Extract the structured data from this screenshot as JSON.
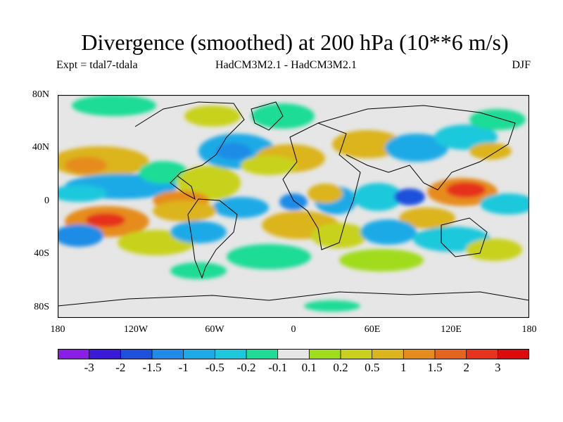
{
  "title": "Divergence (smoothed) at 200 hPa (10**6 m/s)",
  "experiment": "Expt = tdal7-tdala",
  "models": "HadCM3M2.1 - HadCM3M2.1",
  "season": "DJF",
  "lat_labels": [
    "80N",
    "40N",
    "0",
    "40S",
    "80S"
  ],
  "lon_labels": [
    "180",
    "120W",
    "60W",
    "0",
    "60E",
    "120E",
    "180"
  ],
  "colorbar": {
    "labels": [
      "-3",
      "-2",
      "-1.5",
      "-1",
      "-0.5",
      "-0.2",
      "-0.1",
      "0.1",
      "0.2",
      "0.5",
      "1",
      "1.5",
      "2",
      "3"
    ],
    "colors": [
      "#8a1ee6",
      "#3a1ad8",
      "#1e50dc",
      "#1e8ce6",
      "#1eaae6",
      "#1ec8dc",
      "#1edc96",
      "#e6e6e6",
      "#a0dc1e",
      "#c8d21e",
      "#dcb41e",
      "#e68c1e",
      "#e6641e",
      "#e6321e",
      "#dc0a0a"
    ]
  },
  "map_colors": {
    "land_outline": "#000000",
    "frame": "#000000",
    "background": "#e6e6e6"
  }
}
